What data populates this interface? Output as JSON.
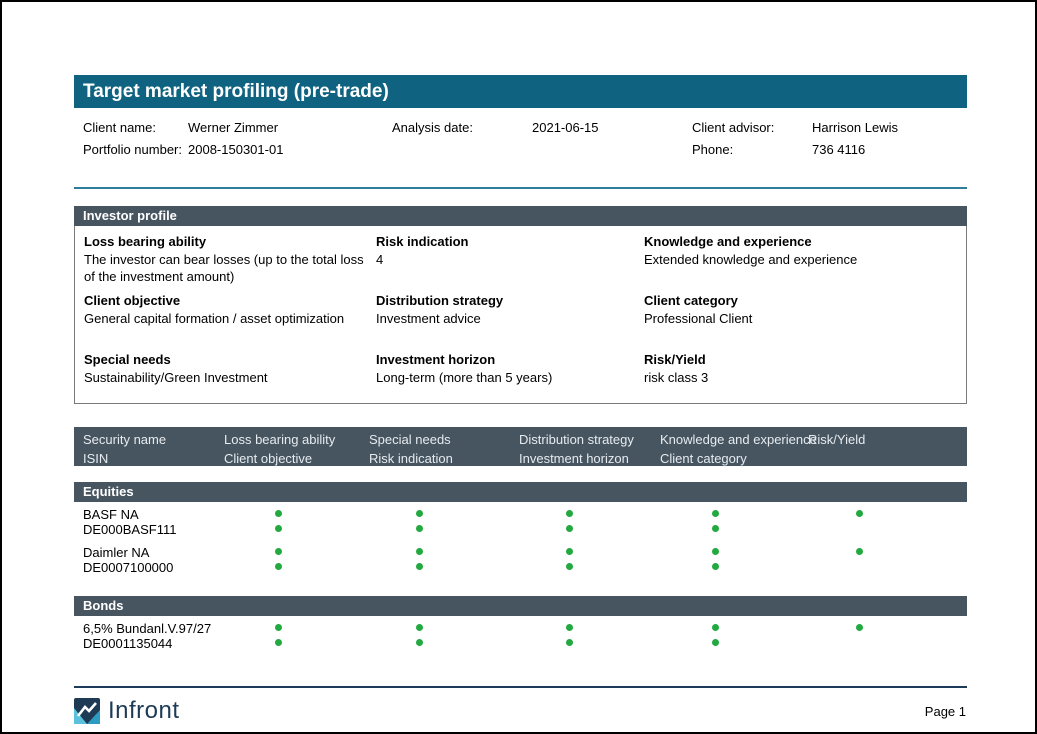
{
  "header": {
    "title": "Target market profiling (pre-trade)"
  },
  "client_info": {
    "rows": [
      [
        {
          "label": "Client name:",
          "value": "Werner Zimmer"
        },
        {
          "label": "Analysis date:",
          "value": "2021-06-15"
        },
        {
          "label": "Client advisor:",
          "value": "Harrison Lewis"
        }
      ],
      [
        {
          "label": "Portfolio number:",
          "value": "2008-150301-01"
        },
        {
          "label": "",
          "value": ""
        },
        {
          "label": "Phone:",
          "value": "736 4116"
        }
      ]
    ]
  },
  "investor_profile": {
    "title": "Investor profile",
    "fields": [
      {
        "label": "Loss bearing ability",
        "value": "The investor can bear losses (up to the total loss of the investment amount)"
      },
      {
        "label": "Risk indication",
        "value": "4"
      },
      {
        "label": "Knowledge and experience",
        "value": "Extended knowledge and experience"
      },
      {
        "label": "Client objective",
        "value": "General capital formation / asset optimization"
      },
      {
        "label": "Distribution strategy",
        "value": "Investment advice"
      },
      {
        "label": "Client category",
        "value": "Professional Client"
      },
      {
        "label": "Special needs",
        "value": "Sustainability/Green Investment"
      },
      {
        "label": "Investment horizon",
        "value": "Long-term (more than 5 years)"
      },
      {
        "label": "Risk/Yield",
        "value": "risk class 3"
      }
    ]
  },
  "table": {
    "columns": [
      {
        "line1": "Security name",
        "line2": "ISIN"
      },
      {
        "line1": "Loss bearing ability",
        "line2": "Client objective"
      },
      {
        "line1": "Special needs",
        "line2": "Risk indication"
      },
      {
        "line1": "Distribution strategy",
        "line2": "Investment horizon"
      },
      {
        "line1": "Knowledge and experience",
        "line2": "Client category"
      },
      {
        "line1": "Risk/Yield",
        "line2": ""
      }
    ],
    "sections": [
      {
        "title": "Equities",
        "rows": [
          {
            "name": "BASF NA",
            "isin": "DE000BASF111",
            "dots_line1": [
              true,
              true,
              true,
              true,
              true
            ],
            "dots_line2": [
              true,
              true,
              true,
              true,
              false
            ]
          },
          {
            "name": "Daimler NA",
            "isin": "DE0007100000",
            "dots_line1": [
              true,
              true,
              true,
              true,
              true
            ],
            "dots_line2": [
              true,
              true,
              true,
              true,
              false
            ]
          }
        ]
      },
      {
        "title": "Bonds",
        "rows": [
          {
            "name": "6,5% Bundanl.V.97/27",
            "isin": "DE0001135044",
            "dots_line1": [
              true,
              true,
              true,
              true,
              true
            ],
            "dots_line2": [
              true,
              true,
              true,
              true,
              false
            ]
          }
        ]
      }
    ]
  },
  "footer": {
    "brand": "Infront",
    "page_label": "Page 1"
  },
  "colors": {
    "accent_teal": "#106380",
    "slate": "#475561",
    "separator": "#2e7d9c",
    "footer_line": "#1e3a5a",
    "dot_green": "#22a93f",
    "brand_navy": "#1e3a55"
  }
}
